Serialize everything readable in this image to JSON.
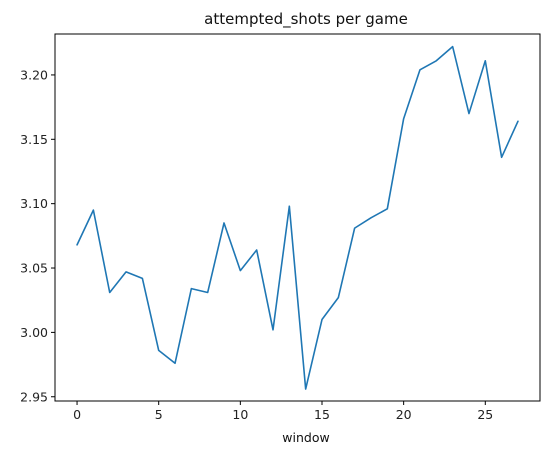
{
  "chart_data": {
    "type": "line",
    "title": "attempted_shots per game",
    "xlabel": "window",
    "ylabel": "",
    "xlim": [
      -1.35,
      28.35
    ],
    "ylim": [
      2.9467,
      3.2318
    ],
    "x_ticks": [
      0,
      5,
      10,
      15,
      20,
      25
    ],
    "y_ticks": [
      2.95,
      3.0,
      3.05,
      3.1,
      3.15,
      3.2
    ],
    "y_tick_labels": [
      "2.95",
      "3.00",
      "3.05",
      "3.10",
      "3.15",
      "3.20"
    ],
    "grid": false,
    "legend": "none",
    "line_color": "#1f77b4",
    "series": [
      {
        "x": [
          0,
          1,
          2,
          3,
          4,
          5,
          6,
          7,
          8,
          9,
          10,
          11,
          12,
          13,
          14,
          15,
          16,
          17,
          18,
          19,
          20,
          21,
          22,
          23,
          24,
          25,
          26,
          27
        ],
        "values": [
          3.068,
          3.095,
          3.031,
          3.047,
          3.042,
          2.986,
          2.976,
          3.034,
          3.031,
          3.085,
          3.048,
          3.064,
          3.002,
          3.098,
          2.956,
          3.01,
          3.027,
          3.081,
          3.089,
          3.096,
          3.166,
          3.204,
          3.211,
          3.222,
          3.17,
          3.211,
          3.136,
          3.164
        ]
      }
    ]
  }
}
